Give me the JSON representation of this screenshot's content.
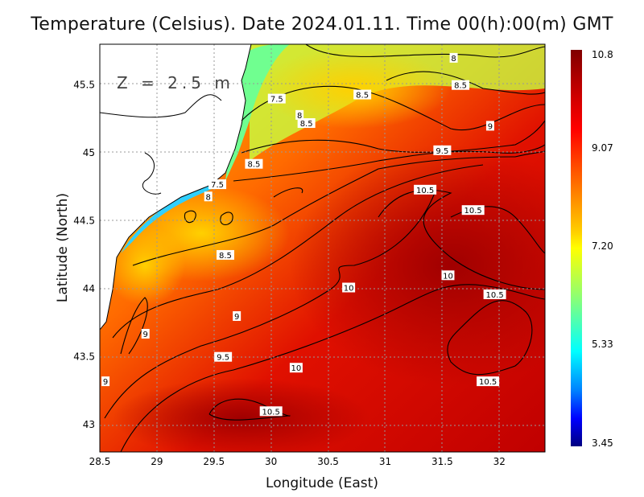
{
  "title": "Temperature (Celsius). Date 2024.01.11. Time 00(h):00(m) GMT",
  "depth_label": "Z = 2.5 m",
  "chart_data": {
    "type": "heatmap",
    "title": "Temperature (Celsius). Date 2024.01.11. Time 00(h):00(m) GMT",
    "xlabel": "Longitude (East)",
    "ylabel": "Latitude (North)",
    "xlim": [
      28.5,
      32.4
    ],
    "ylim": [
      42.8,
      45.8
    ],
    "xticks": [
      "28.5",
      "29",
      "29.5",
      "30",
      "30.5",
      "31",
      "31.5",
      "32"
    ],
    "yticks": [
      "43",
      "43.5",
      "44",
      "44.5",
      "45",
      "45.5"
    ],
    "grid": true,
    "colorbar": {
      "min": 3.45,
      "max": 10.8,
      "labels": [
        "10.8",
        "9.07",
        "7.20",
        "5.33",
        "3.45"
      ],
      "colors": [
        "#800000",
        "#ff0000",
        "#ff8000",
        "#ffff00",
        "#80ff80",
        "#00ffff",
        "#0080ff",
        "#0000ff",
        "#000080"
      ]
    },
    "contour_labels": [
      {
        "text": "8",
        "lon": 31.6,
        "lat": 45.7
      },
      {
        "text": "8.5",
        "lon": 31.66,
        "lat": 45.5
      },
      {
        "text": "8.5",
        "lon": 30.8,
        "lat": 45.43
      },
      {
        "text": "7.5",
        "lon": 30.05,
        "lat": 45.4
      },
      {
        "text": "8",
        "lon": 30.25,
        "lat": 45.28
      },
      {
        "text": "8.5",
        "lon": 30.31,
        "lat": 45.22
      },
      {
        "text": "9",
        "lon": 31.92,
        "lat": 45.2
      },
      {
        "text": "9.5",
        "lon": 31.5,
        "lat": 45.02
      },
      {
        "text": "8.5",
        "lon": 29.85,
        "lat": 44.92
      },
      {
        "text": "7.5",
        "lon": 29.53,
        "lat": 44.77
      },
      {
        "text": "8",
        "lon": 29.45,
        "lat": 44.68
      },
      {
        "text": "10.5",
        "lon": 31.35,
        "lat": 44.73
      },
      {
        "text": "10.5",
        "lon": 31.77,
        "lat": 44.58
      },
      {
        "text": "8.5",
        "lon": 29.6,
        "lat": 44.25
      },
      {
        "text": "10",
        "lon": 31.55,
        "lat": 44.1
      },
      {
        "text": "10",
        "lon": 30.68,
        "lat": 44.01
      },
      {
        "text": "10.5",
        "lon": 31.96,
        "lat": 43.96
      },
      {
        "text": "9",
        "lon": 29.7,
        "lat": 43.8
      },
      {
        "text": "9",
        "lon": 28.9,
        "lat": 43.67
      },
      {
        "text": "9.5",
        "lon": 29.58,
        "lat": 43.5
      },
      {
        "text": "10",
        "lon": 30.22,
        "lat": 43.42
      },
      {
        "text": "9",
        "lon": 28.55,
        "lat": 43.32
      },
      {
        "text": "10.5",
        "lon": 31.9,
        "lat": 43.32
      },
      {
        "text": "10.5",
        "lon": 30,
        "lat": 43.1
      }
    ]
  }
}
